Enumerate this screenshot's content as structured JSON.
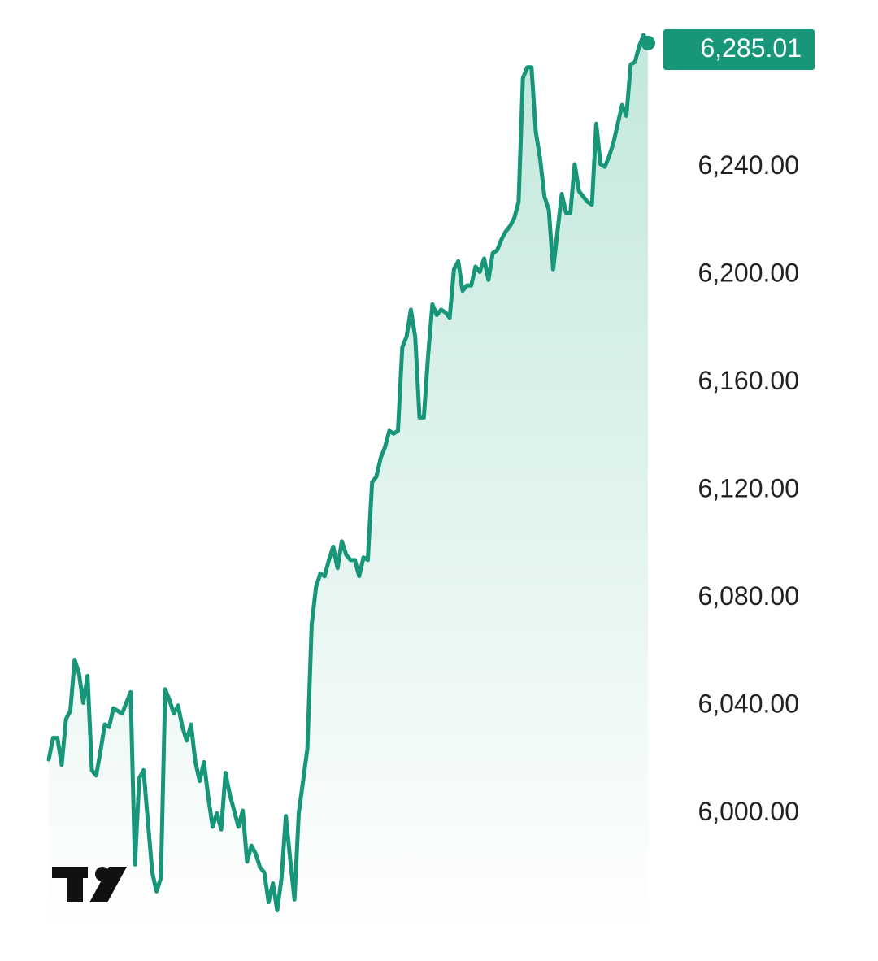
{
  "colors": {
    "line": "#17967a",
    "badge_bg": "#17967a",
    "badge_text": "#ffffff",
    "area_top": "#bfe6da",
    "area_bottom": "#ffffff",
    "axis_text": "#222222"
  },
  "icons": {
    "logo": "tradingview-logo-icon"
  },
  "chart_data": {
    "type": "area",
    "y_axis_side": "right",
    "ylim": [
      5976,
      6292
    ],
    "ytick_labels": [
      "6,240.00",
      "6,200.00",
      "6,160.00",
      "6,120.00",
      "6,080.00",
      "6,040.00",
      "6,000.00"
    ],
    "yticks": [
      6240,
      6200,
      6160,
      6120,
      6080,
      6040,
      6000
    ],
    "last_price_label": "6,285.01",
    "last_price": 6285.01,
    "grid": false,
    "legend": "none",
    "series": [
      {
        "values": [
          6019,
          6027,
          6027,
          6017,
          6034,
          6037,
          6056,
          6051,
          6040,
          6050,
          6015,
          6013,
          6022,
          6032,
          6031,
          6038,
          6037,
          6036,
          6040,
          6044,
          5980,
          6012,
          6015,
          5996,
          5977,
          5970,
          5975,
          6045,
          6041,
          6036,
          6039,
          6031,
          6026,
          6032,
          6018,
          6011,
          6018,
          6005,
          5994,
          5999,
          5993,
          6014,
          6006,
          6000,
          5994,
          6000,
          5981,
          5987,
          5984,
          5979,
          5977,
          5966,
          5973,
          5963,
          5975,
          5998,
          5982,
          5967,
          5999,
          6011,
          6023,
          6069,
          6083,
          6088,
          6087,
          6093,
          6098,
          6090,
          6100,
          6095,
          6093,
          6093,
          6087,
          6094,
          6093,
          6122,
          6124,
          6131,
          6135,
          6141,
          6140,
          6141,
          6172,
          6176,
          6186,
          6176,
          6146,
          6146,
          6169,
          6188,
          6184,
          6186,
          6185,
          6183,
          6201,
          6204,
          6193,
          6195,
          6195,
          6202,
          6200,
          6205,
          6197,
          6207,
          6208,
          6212,
          6215,
          6217,
          6220,
          6226,
          6272,
          6276,
          6276,
          6252,
          6242,
          6228,
          6223,
          6201,
          6215,
          6229,
          6222,
          6222,
          6240,
          6230,
          6228,
          6226,
          6225,
          6255,
          6240,
          6239,
          6243,
          6248,
          6255,
          6262,
          6258,
          6277,
          6278,
          6284,
          6288,
          6285
        ]
      }
    ]
  }
}
